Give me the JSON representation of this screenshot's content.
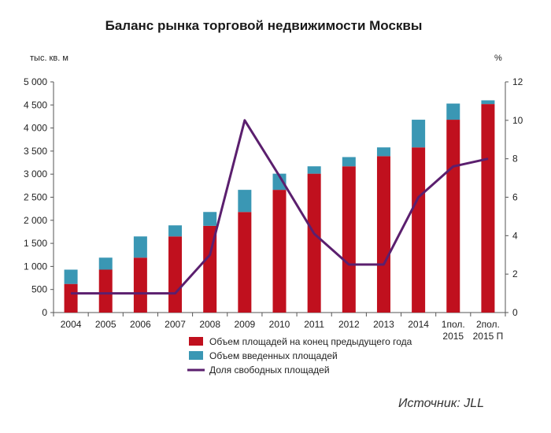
{
  "colors": {
    "base": "#c0101e",
    "added": "#3a97b4",
    "line": "#5b1f6e",
    "axis": "#555555"
  },
  "source": "Источник: JLL",
  "chart_data": {
    "type": "bar",
    "title": "Баланс рынка торговой недвижимости Москвы",
    "ylabel_left": "тыс. кв. м",
    "ylabel_right": "%",
    "ylim_left": [
      0,
      5000
    ],
    "ylim_right": [
      0,
      12
    ],
    "yticks_left": [
      "0",
      "500",
      "1 000",
      "1 500",
      "2 000",
      "2 500",
      "3 000",
      "3 500",
      "4 000",
      "4 500",
      "5 000"
    ],
    "yticks_right": [
      "0",
      "2",
      "4",
      "6",
      "8",
      "10",
      "12"
    ],
    "grid": false,
    "legend_position": "bottom",
    "categories": [
      [
        "2004"
      ],
      [
        "2005"
      ],
      [
        "2006"
      ],
      [
        "2007"
      ],
      [
        "2008"
      ],
      [
        "2009"
      ],
      [
        "2010"
      ],
      [
        "2011"
      ],
      [
        "2012"
      ],
      [
        "2013"
      ],
      [
        "2014"
      ],
      [
        "1пол.",
        "2015"
      ],
      [
        "2пол.",
        "2015 П"
      ]
    ],
    "series": [
      {
        "name": "Объем площадей на конец предыдущего года",
        "type": "bar",
        "axis": "left",
        "values": [
          620,
          930,
          1190,
          1650,
          1880,
          2180,
          2660,
          3010,
          3170,
          3390,
          3580,
          4180,
          4520
        ]
      },
      {
        "name": "Объем введенных площадей",
        "type": "bar",
        "axis": "left",
        "values": [
          310,
          260,
          460,
          240,
          300,
          480,
          350,
          160,
          200,
          190,
          600,
          350,
          80
        ]
      },
      {
        "name": "Доля свободных площадей",
        "type": "line",
        "axis": "right",
        "values": [
          1.0,
          1.0,
          1.0,
          1.0,
          3.0,
          10.0,
          7.1,
          4.1,
          2.5,
          2.5,
          6.0,
          7.6,
          8.0
        ]
      }
    ]
  }
}
